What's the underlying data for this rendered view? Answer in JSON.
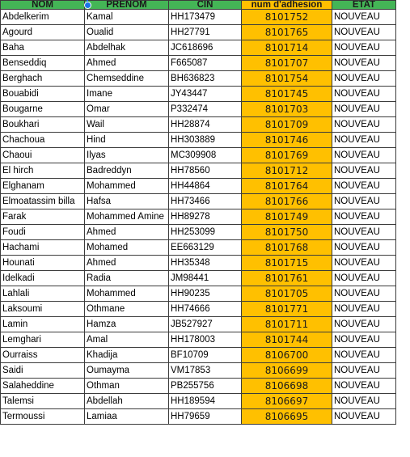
{
  "headers": [
    "NOM",
    "PRENOM",
    "CIN",
    "num d'adhesion",
    "ETAT"
  ],
  "rows": [
    [
      "Abdelkerim",
      "Kamal",
      "HH173479",
      "8101752",
      "NOUVEAU"
    ],
    [
      "Agourd",
      "Oualid",
      "HH27791",
      "8101765",
      "NOUVEAU"
    ],
    [
      "Baha",
      "Abdelhak",
      "JC618696",
      "8101714",
      "NOUVEAU"
    ],
    [
      "Benseddiq",
      "Ahmed",
      "F665087",
      "8101707",
      "NOUVEAU"
    ],
    [
      "Berghach",
      "Chemseddine",
      "BH636823",
      "8101754",
      "NOUVEAU"
    ],
    [
      "Bouabidi",
      "Imane",
      "JY43447",
      "8101745",
      "NOUVEAU"
    ],
    [
      "Bougarne",
      "Omar",
      "P332474",
      "8101703",
      "NOUVEAU"
    ],
    [
      "Boukhari",
      "Wail",
      "HH28874",
      "8101709",
      "NOUVEAU"
    ],
    [
      "Chachoua",
      "Hind",
      "HH303889",
      "8101746",
      "NOUVEAU"
    ],
    [
      "Chaoui",
      "Ilyas",
      "MC309908",
      "8101769",
      "NOUVEAU"
    ],
    [
      "El hirch",
      "Badreddyn",
      "HH78560",
      "8101712",
      "NOUVEAU"
    ],
    [
      "Elghanam",
      "Mohammed",
      "HH44864",
      "8101764",
      "NOUVEAU"
    ],
    [
      "Elmoatassim billa",
      "Hafsa",
      "HH73466",
      "8101766",
      "NOUVEAU"
    ],
    [
      "Farak",
      "Mohammed Amine",
      "HH89278",
      "8101749",
      "NOUVEAU"
    ],
    [
      "Foudi",
      "Ahmed",
      "HH253099",
      "8101750",
      "NOUVEAU"
    ],
    [
      "Hachami",
      "Mohamed",
      "EE663129",
      "8101768",
      "NOUVEAU"
    ],
    [
      "Hounati",
      "Ahmed",
      "HH35348",
      "8101715",
      "NOUVEAU"
    ],
    [
      "Idelkadi",
      "Radia",
      "JM98441",
      "8101761",
      "NOUVEAU"
    ],
    [
      "Lahlali",
      "Mohammed",
      "HH90235",
      "8101705",
      "NOUVEAU"
    ],
    [
      "Laksoumi",
      "Othmane",
      "HH74666",
      "8101771",
      "NOUVEAU"
    ],
    [
      "Lamin",
      "Hamza",
      "JB527927",
      "8101711",
      "NOUVEAU"
    ],
    [
      "Lemghari",
      "Amal",
      "HH178003",
      "8101744",
      "NOUVEAU"
    ],
    [
      "Ourraiss",
      "Khadija",
      "BF10709",
      "8106700",
      "NOUVEAU"
    ],
    [
      "Saidi",
      "Oumayma",
      "VM17853",
      "8106699",
      "NOUVEAU"
    ],
    [
      "Salaheddine",
      "Othman",
      "PB255756",
      "8106698",
      "NOUVEAU"
    ],
    [
      "Talemsi",
      "Abdellah",
      "HH189594",
      "8106697",
      "NOUVEAU"
    ],
    [
      "Termoussi",
      "Lamiaa",
      "HH79659",
      "8106695",
      "NOUVEAU"
    ]
  ],
  "colors": {
    "header_green": "#44b556",
    "adhesion_orange": "#ffc000",
    "selection_blue": "#1a73e8"
  }
}
